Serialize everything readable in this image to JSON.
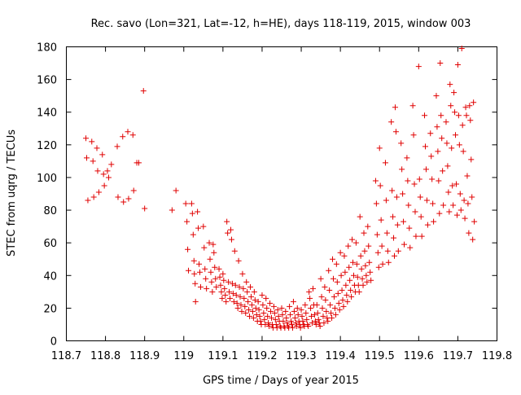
{
  "chart_data": {
    "type": "scatter",
    "title": "Rec. savo (Lon=321, Lat=-12, h=HE), days 118-119, 2015, window 003",
    "xlabel": "GPS time / Days of year 2015",
    "ylabel": "STEC from uqrg / TECUs",
    "xlim": [
      118.7,
      119.8
    ],
    "ylim": [
      0,
      180
    ],
    "x_ticks": [
      "118.7",
      "118.8",
      "118.9",
      "119",
      "119.1",
      "119.2",
      "119.3",
      "119.4",
      "119.5",
      "119.6",
      "119.7",
      "119.8"
    ],
    "y_ticks": [
      "0",
      "20",
      "40",
      "60",
      "80",
      "100",
      "120",
      "140",
      "160",
      "180"
    ],
    "grid": false,
    "marker": "plus",
    "color": "#e00000",
    "points": [
      [
        118.75,
        124
      ],
      [
        118.752,
        112
      ],
      [
        118.755,
        86
      ],
      [
        118.765,
        122
      ],
      [
        118.768,
        110
      ],
      [
        118.77,
        88
      ],
      [
        118.778,
        118
      ],
      [
        118.78,
        104
      ],
      [
        118.783,
        91
      ],
      [
        118.792,
        114
      ],
      [
        118.795,
        102
      ],
      [
        118.797,
        95
      ],
      [
        118.805,
        104
      ],
      [
        118.808,
        100
      ],
      [
        118.815,
        108
      ],
      [
        118.83,
        119
      ],
      [
        118.832,
        88
      ],
      [
        118.844,
        125
      ],
      [
        118.846,
        85
      ],
      [
        118.857,
        128
      ],
      [
        118.859,
        87
      ],
      [
        118.87,
        126
      ],
      [
        118.872,
        92
      ],
      [
        118.88,
        109
      ],
      [
        118.885,
        109
      ],
      [
        118.897,
        153
      ],
      [
        118.9,
        81
      ],
      [
        118.97,
        80
      ],
      [
        118.98,
        92
      ],
      [
        119.005,
        84
      ],
      [
        119.008,
        73
      ],
      [
        119.01,
        56
      ],
      [
        119.012,
        43
      ],
      [
        119.02,
        84
      ],
      [
        119.022,
        78
      ],
      [
        119.024,
        65
      ],
      [
        119.026,
        49
      ],
      [
        119.027,
        41
      ],
      [
        119.029,
        35
      ],
      [
        119.03,
        24
      ],
      [
        119.035,
        79
      ],
      [
        119.037,
        69
      ],
      [
        119.039,
        47
      ],
      [
        119.041,
        42
      ],
      [
        119.043,
        33
      ],
      [
        119.05,
        70
      ],
      [
        119.052,
        57
      ],
      [
        119.054,
        44
      ],
      [
        119.056,
        38
      ],
      [
        119.058,
        32
      ],
      [
        119.065,
        60
      ],
      [
        119.067,
        50
      ],
      [
        119.069,
        42
      ],
      [
        119.071,
        36
      ],
      [
        119.073,
        30
      ],
      [
        119.075,
        59
      ],
      [
        119.077,
        54
      ],
      [
        119.079,
        45
      ],
      [
        119.081,
        38
      ],
      [
        119.083,
        33
      ],
      [
        119.09,
        44
      ],
      [
        119.092,
        39
      ],
      [
        119.094,
        34
      ],
      [
        119.096,
        30
      ],
      [
        119.098,
        26
      ],
      [
        119.1,
        41
      ],
      [
        119.102,
        37
      ],
      [
        119.104,
        32
      ],
      [
        119.106,
        28
      ],
      [
        119.108,
        24
      ],
      [
        119.11,
        73
      ],
      [
        119.112,
        66
      ],
      [
        119.114,
        36
      ],
      [
        119.116,
        30
      ],
      [
        119.118,
        26
      ],
      [
        119.12,
        68
      ],
      [
        119.122,
        62
      ],
      [
        119.124,
        35
      ],
      [
        119.126,
        29
      ],
      [
        119.128,
        24
      ],
      [
        119.13,
        55
      ],
      [
        119.132,
        34
      ],
      [
        119.134,
        28
      ],
      [
        119.136,
        23
      ],
      [
        119.138,
        20
      ],
      [
        119.14,
        49
      ],
      [
        119.142,
        33
      ],
      [
        119.144,
        27
      ],
      [
        119.146,
        22
      ],
      [
        119.148,
        18
      ],
      [
        119.15,
        41
      ],
      [
        119.152,
        32
      ],
      [
        119.154,
        26
      ],
      [
        119.156,
        21
      ],
      [
        119.158,
        17
      ],
      [
        119.16,
        36
      ],
      [
        119.162,
        30
      ],
      [
        119.164,
        24
      ],
      [
        119.166,
        19
      ],
      [
        119.168,
        15
      ],
      [
        119.17,
        33
      ],
      [
        119.172,
        27
      ],
      [
        119.174,
        22
      ],
      [
        119.176,
        18
      ],
      [
        119.178,
        14
      ],
      [
        119.18,
        30
      ],
      [
        119.182,
        25
      ],
      [
        119.184,
        20
      ],
      [
        119.186,
        16
      ],
      [
        119.188,
        12
      ],
      [
        119.19,
        24
      ],
      [
        119.192,
        19
      ],
      [
        119.194,
        15
      ],
      [
        119.196,
        12
      ],
      [
        119.198,
        10
      ],
      [
        119.2,
        28
      ],
      [
        119.202,
        22
      ],
      [
        119.204,
        17
      ],
      [
        119.206,
        13
      ],
      [
        119.208,
        10
      ],
      [
        119.21,
        26
      ],
      [
        119.212,
        20
      ],
      [
        119.214,
        15
      ],
      [
        119.216,
        11
      ],
      [
        119.218,
        9
      ],
      [
        119.22,
        23
      ],
      [
        119.222,
        18
      ],
      [
        119.224,
        14
      ],
      [
        119.226,
        10
      ],
      [
        119.228,
        8
      ],
      [
        119.23,
        21
      ],
      [
        119.232,
        17
      ],
      [
        119.234,
        13
      ],
      [
        119.236,
        10
      ],
      [
        119.238,
        8
      ],
      [
        119.24,
        19
      ],
      [
        119.242,
        15
      ],
      [
        119.244,
        12
      ],
      [
        119.246,
        9
      ],
      [
        119.248,
        8
      ],
      [
        119.25,
        20
      ],
      [
        119.252,
        16
      ],
      [
        119.254,
        12
      ],
      [
        119.256,
        9
      ],
      [
        119.258,
        8
      ],
      [
        119.26,
        18
      ],
      [
        119.262,
        14
      ],
      [
        119.264,
        11
      ],
      [
        119.266,
        9
      ],
      [
        119.268,
        8
      ],
      [
        119.27,
        21
      ],
      [
        119.272,
        16
      ],
      [
        119.274,
        12
      ],
      [
        119.276,
        10
      ],
      [
        119.278,
        8
      ],
      [
        119.28,
        24
      ],
      [
        119.282,
        18
      ],
      [
        119.284,
        14
      ],
      [
        119.286,
        11
      ],
      [
        119.288,
        9
      ],
      [
        119.29,
        20
      ],
      [
        119.292,
        16
      ],
      [
        119.294,
        12
      ],
      [
        119.296,
        10
      ],
      [
        119.298,
        8
      ],
      [
        119.3,
        19
      ],
      [
        119.302,
        15
      ],
      [
        119.304,
        12
      ],
      [
        119.306,
        10
      ],
      [
        119.308,
        9
      ],
      [
        119.31,
        22
      ],
      [
        119.312,
        17
      ],
      [
        119.314,
        13
      ],
      [
        119.316,
        10
      ],
      [
        119.318,
        9
      ],
      [
        119.32,
        30
      ],
      [
        119.322,
        26
      ],
      [
        119.324,
        20
      ],
      [
        119.326,
        15
      ],
      [
        119.328,
        11
      ],
      [
        119.33,
        32
      ],
      [
        119.332,
        22
      ],
      [
        119.334,
        16
      ],
      [
        119.336,
        12
      ],
      [
        119.338,
        10
      ],
      [
        119.34,
        22
      ],
      [
        119.342,
        17
      ],
      [
        119.344,
        13
      ],
      [
        119.346,
        11
      ],
      [
        119.348,
        9
      ],
      [
        119.35,
        38
      ],
      [
        119.352,
        27
      ],
      [
        119.354,
        20
      ],
      [
        119.356,
        15
      ],
      [
        119.358,
        11
      ],
      [
        119.36,
        33
      ],
      [
        119.362,
        25
      ],
      [
        119.364,
        18
      ],
      [
        119.366,
        14
      ],
      [
        119.368,
        12
      ],
      [
        119.37,
        43
      ],
      [
        119.372,
        31
      ],
      [
        119.374,
        22
      ],
      [
        119.376,
        17
      ],
      [
        119.378,
        14
      ],
      [
        119.38,
        50
      ],
      [
        119.382,
        38
      ],
      [
        119.384,
        27
      ],
      [
        119.386,
        20
      ],
      [
        119.388,
        16
      ],
      [
        119.39,
        47
      ],
      [
        119.392,
        36
      ],
      [
        119.394,
        29
      ],
      [
        119.396,
        23
      ],
      [
        119.398,
        19
      ],
      [
        119.4,
        54
      ],
      [
        119.402,
        40
      ],
      [
        119.404,
        31
      ],
      [
        119.406,
        25
      ],
      [
        119.408,
        21
      ],
      [
        119.41,
        52
      ],
      [
        119.412,
        42
      ],
      [
        119.414,
        34
      ],
      [
        119.416,
        28
      ],
      [
        119.418,
        24
      ],
      [
        119.42,
        58
      ],
      [
        119.422,
        45
      ],
      [
        119.424,
        37
      ],
      [
        119.426,
        31
      ],
      [
        119.428,
        27
      ],
      [
        119.43,
        62
      ],
      [
        119.432,
        48
      ],
      [
        119.434,
        40
      ],
      [
        119.436,
        34
      ],
      [
        119.438,
        30
      ],
      [
        119.44,
        60
      ],
      [
        119.442,
        47
      ],
      [
        119.444,
        39
      ],
      [
        119.446,
        34
      ],
      [
        119.448,
        30
      ],
      [
        119.45,
        76
      ],
      [
        119.452,
        52
      ],
      [
        119.454,
        44
      ],
      [
        119.456,
        38
      ],
      [
        119.458,
        34
      ],
      [
        119.46,
        66
      ],
      [
        119.462,
        55
      ],
      [
        119.464,
        46
      ],
      [
        119.466,
        40
      ],
      [
        119.468,
        36
      ],
      [
        119.47,
        70
      ],
      [
        119.472,
        58
      ],
      [
        119.474,
        48
      ],
      [
        119.476,
        42
      ],
      [
        119.478,
        37
      ],
      [
        119.49,
        98
      ],
      [
        119.492,
        84
      ],
      [
        119.494,
        65
      ],
      [
        119.496,
        54
      ],
      [
        119.498,
        45
      ],
      [
        119.5,
        118
      ],
      [
        119.502,
        95
      ],
      [
        119.504,
        74
      ],
      [
        119.506,
        58
      ],
      [
        119.508,
        47
      ],
      [
        119.515,
        109
      ],
      [
        119.517,
        86
      ],
      [
        119.519,
        66
      ],
      [
        119.521,
        55
      ],
      [
        119.523,
        48
      ],
      [
        119.53,
        134
      ],
      [
        119.532,
        92
      ],
      [
        119.534,
        76
      ],
      [
        119.536,
        63
      ],
      [
        119.538,
        52
      ],
      [
        119.54,
        143
      ],
      [
        119.542,
        128
      ],
      [
        119.544,
        88
      ],
      [
        119.546,
        71
      ],
      [
        119.548,
        55
      ],
      [
        119.555,
        121
      ],
      [
        119.557,
        105
      ],
      [
        119.559,
        90
      ],
      [
        119.561,
        73
      ],
      [
        119.563,
        59
      ],
      [
        119.57,
        112
      ],
      [
        119.572,
        98
      ],
      [
        119.574,
        83
      ],
      [
        119.576,
        69
      ],
      [
        119.578,
        57
      ],
      [
        119.585,
        144
      ],
      [
        119.587,
        126
      ],
      [
        119.589,
        96
      ],
      [
        119.591,
        79
      ],
      [
        119.593,
        64
      ],
      [
        119.6,
        168
      ],
      [
        119.602,
        99
      ],
      [
        119.604,
        88
      ],
      [
        119.606,
        76
      ],
      [
        119.608,
        64
      ],
      [
        119.615,
        138
      ],
      [
        119.617,
        119
      ],
      [
        119.619,
        105
      ],
      [
        119.621,
        86
      ],
      [
        119.623,
        71
      ],
      [
        119.63,
        127
      ],
      [
        119.632,
        113
      ],
      [
        119.634,
        99
      ],
      [
        119.636,
        84
      ],
      [
        119.638,
        73
      ],
      [
        119.645,
        150
      ],
      [
        119.647,
        131
      ],
      [
        119.649,
        116
      ],
      [
        119.651,
        98
      ],
      [
        119.653,
        78
      ],
      [
        119.655,
        170
      ],
      [
        119.657,
        138
      ],
      [
        119.659,
        124
      ],
      [
        119.661,
        104
      ],
      [
        119.663,
        83
      ],
      [
        119.67,
        134
      ],
      [
        119.672,
        121
      ],
      [
        119.674,
        107
      ],
      [
        119.676,
        91
      ],
      [
        119.678,
        79
      ],
      [
        119.68,
        157
      ],
      [
        119.682,
        144
      ],
      [
        119.684,
        118
      ],
      [
        119.686,
        95
      ],
      [
        119.688,
        83
      ],
      [
        119.69,
        152
      ],
      [
        119.692,
        140
      ],
      [
        119.694,
        126
      ],
      [
        119.696,
        96
      ],
      [
        119.698,
        77
      ],
      [
        119.7,
        169
      ],
      [
        119.702,
        138
      ],
      [
        119.704,
        120
      ],
      [
        119.706,
        90
      ],
      [
        119.708,
        80
      ],
      [
        119.71,
        179
      ],
      [
        119.712,
        132
      ],
      [
        119.714,
        116
      ],
      [
        119.716,
        86
      ],
      [
        119.718,
        75
      ],
      [
        119.72,
        143
      ],
      [
        119.722,
        138
      ],
      [
        119.724,
        101
      ],
      [
        119.726,
        84
      ],
      [
        119.728,
        66
      ],
      [
        119.73,
        144
      ],
      [
        119.732,
        135
      ],
      [
        119.734,
        111
      ],
      [
        119.736,
        88
      ],
      [
        119.738,
        62
      ],
      [
        119.74,
        146
      ],
      [
        119.742,
        73
      ]
    ]
  }
}
